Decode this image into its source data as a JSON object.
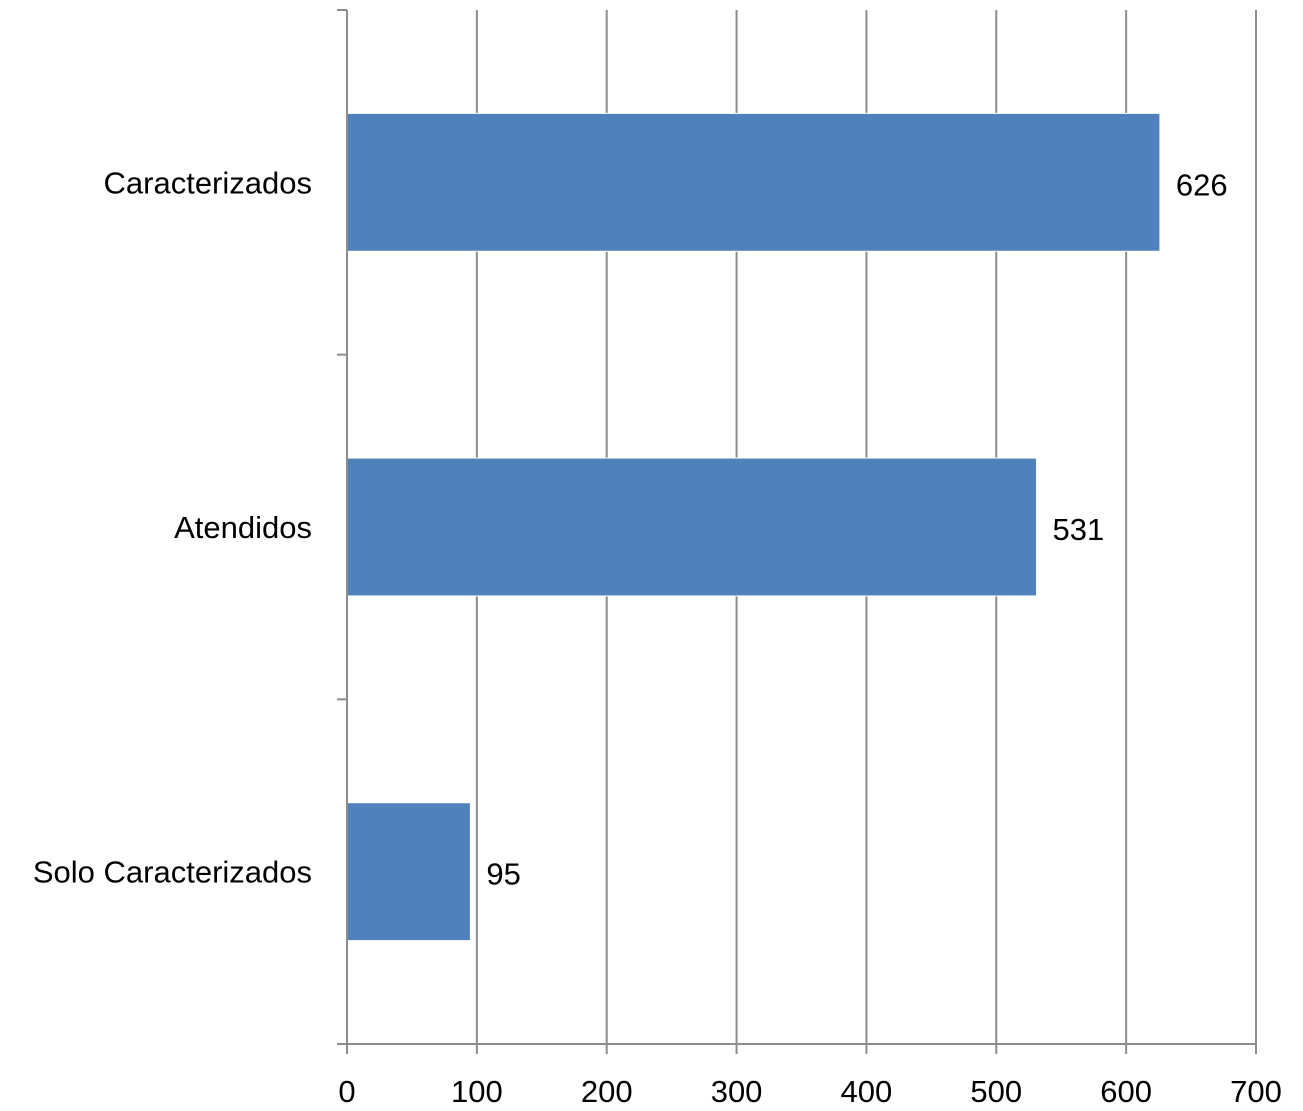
{
  "chart_data": {
    "type": "bar",
    "orientation": "horizontal",
    "categories": [
      "Caracterizados",
      "Atendidos",
      "Solo Caracterizados"
    ],
    "values": [
      626,
      531,
      95
    ],
    "title": "",
    "xlabel": "",
    "ylabel": "",
    "xlim": [
      0,
      700
    ],
    "x_ticks": [
      0,
      100,
      200,
      300,
      400,
      500,
      600,
      700
    ],
    "grid": "vertical",
    "legend": "none",
    "data_labels": true,
    "bar_color": "#4F81BD"
  }
}
